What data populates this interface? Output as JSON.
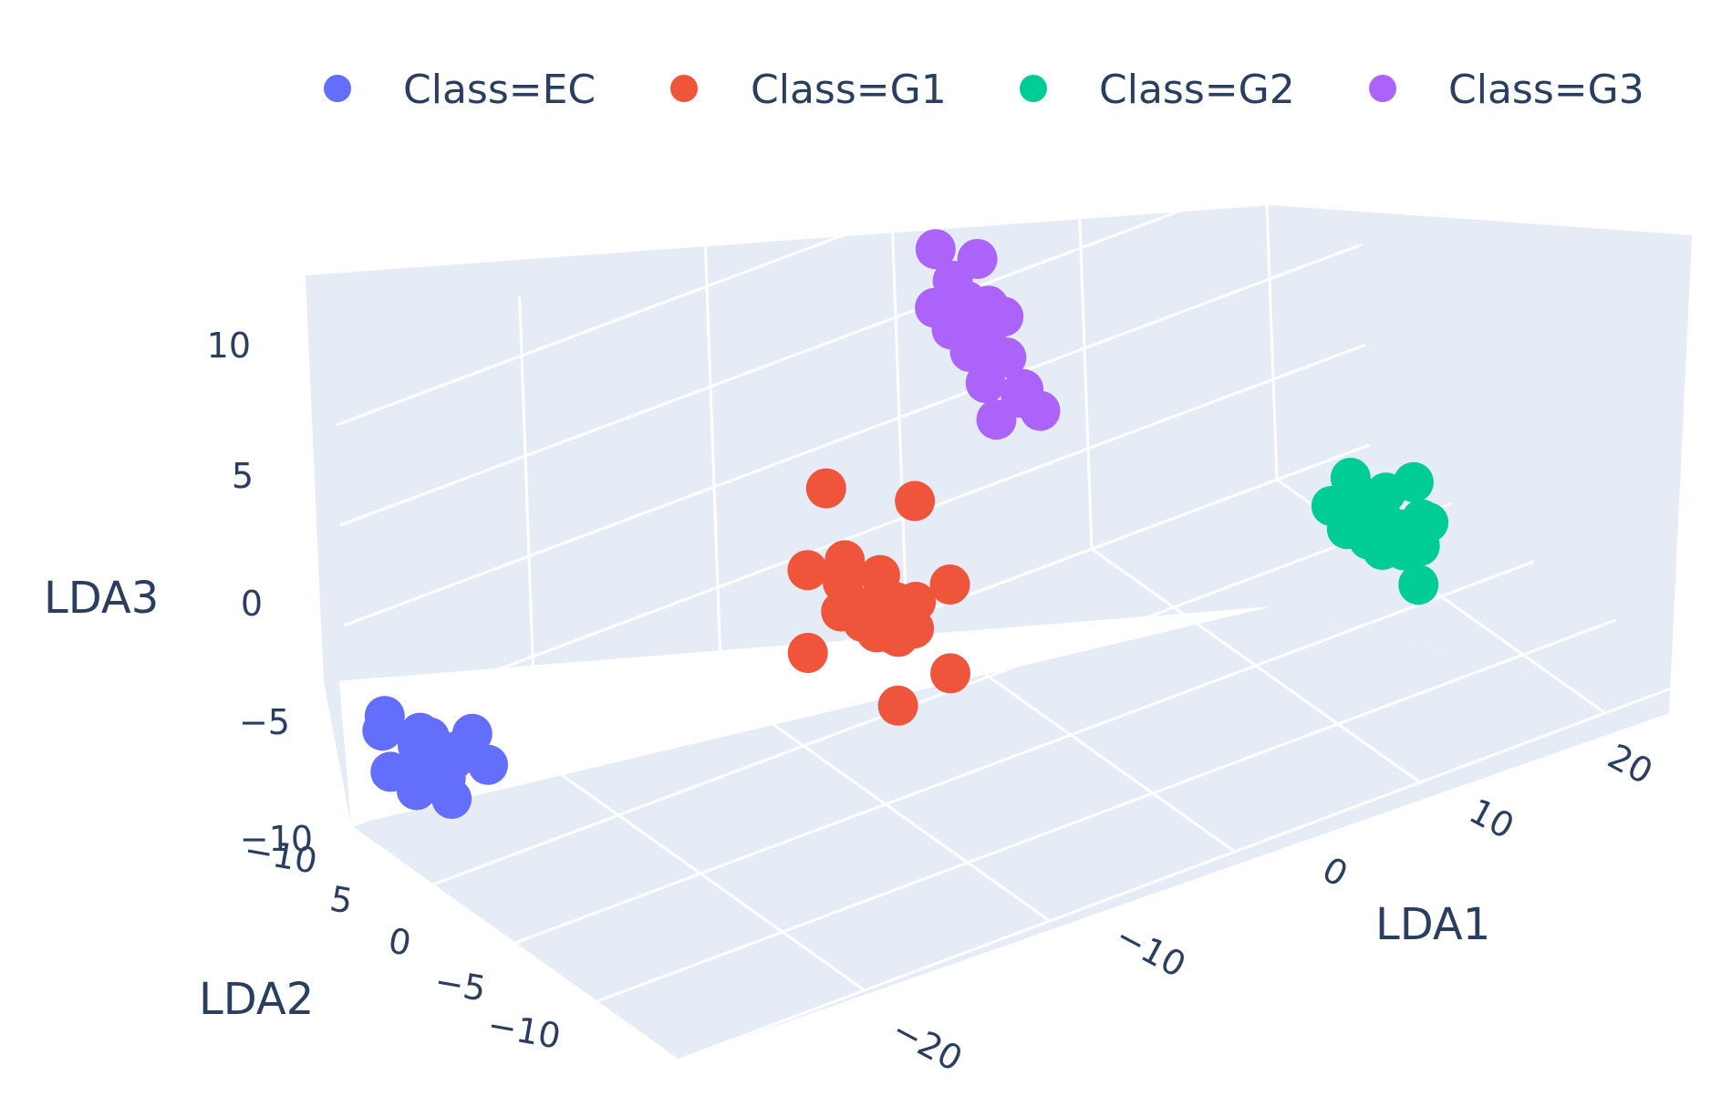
{
  "chart_data": {
    "type": "scatter3d",
    "legend": {
      "placement": "top",
      "entries": [
        "Class=EC",
        "Class=G1",
        "Class=G2",
        "Class=G3"
      ]
    },
    "axes": {
      "x": {
        "title": "LDA1",
        "ticks": [
          "−20",
          "−10",
          "0",
          "10",
          "20"
        ]
      },
      "y": {
        "title": "LDA2",
        "ticks": [
          "−10",
          "−5",
          "0",
          "5",
          "10"
        ],
        "tick_top": "−10"
      },
      "z": {
        "title": "LDA3",
        "ticks": [
          "−10",
          "−5",
          "0",
          "5",
          "10"
        ]
      }
    },
    "colors": {
      "EC": "#636efa",
      "G1": "#ef553b",
      "G2": "#00cc96",
      "G3": "#ab63fa",
      "pane": "#e5ecf6"
    },
    "series": [
      {
        "name": "Class=EC",
        "color": "#636efa",
        "points": [
          [
            -28,
            8,
            -5.5
          ],
          [
            -27,
            7,
            -6
          ],
          [
            -29,
            9,
            -5
          ],
          [
            -26,
            8,
            -6.5
          ],
          [
            -28,
            6,
            -7
          ],
          [
            -27,
            9,
            -5.8
          ],
          [
            -29,
            7,
            -6.8
          ],
          [
            -26,
            6,
            -6
          ],
          [
            -28,
            10,
            -5.2
          ],
          [
            -27.5,
            8.5,
            -7.5
          ],
          [
            -25.5,
            7.5,
            -5.5
          ],
          [
            -28.5,
            6.5,
            -5.8
          ],
          [
            -27,
            7.5,
            -7.2
          ],
          [
            -26.5,
            9,
            -6.2
          ],
          [
            -29.5,
            8,
            -6.3
          ]
        ]
      },
      {
        "name": "Class=G1",
        "color": "#ef553b",
        "points": [
          [
            -10,
            0,
            0
          ],
          [
            -9,
            1,
            0.5
          ],
          [
            -11,
            -1,
            -0.5
          ],
          [
            -10,
            2,
            1
          ],
          [
            -9,
            -1,
            -1
          ],
          [
            -11,
            1,
            0.8
          ],
          [
            -10.5,
            0.5,
            -0.3
          ],
          [
            -9.5,
            -0.5,
            0.2
          ],
          [
            -8,
            0,
            -0.6
          ],
          [
            -12,
            0,
            0.3
          ],
          [
            -10,
            3,
            4
          ],
          [
            -7,
            1,
            3.5
          ],
          [
            -13,
            1,
            -2
          ],
          [
            -8,
            -2,
            -3
          ],
          [
            -10,
            -1,
            -4.5
          ],
          [
            -7,
            -1,
            0.5
          ],
          [
            -12,
            2,
            1.2
          ],
          [
            -9,
            0,
            -2
          ],
          [
            -11,
            -2,
            0
          ],
          [
            -10,
            1,
            -1.5
          ]
        ]
      },
      {
        "name": "Class=G2",
        "color": "#00cc96",
        "points": [
          [
            12,
            -6,
            0
          ],
          [
            13,
            -5,
            0.5
          ],
          [
            11,
            -7,
            -0.5
          ],
          [
            12,
            -4,
            1
          ],
          [
            13,
            -7,
            -1
          ],
          [
            11,
            -5,
            0.8
          ],
          [
            12.5,
            -6.5,
            -0.3
          ],
          [
            11.5,
            -5.5,
            0.2
          ],
          [
            14,
            -6,
            -0.6
          ],
          [
            10,
            -6,
            0.3
          ],
          [
            12,
            -8,
            -2
          ],
          [
            13,
            -6,
            -1.8
          ],
          [
            11,
            -6,
            1.5
          ],
          [
            14.5,
            -5,
            0.5
          ],
          [
            12,
            -5,
            -1.5
          ],
          [
            13.5,
            -7,
            0
          ],
          [
            10.5,
            -4.5,
            0.4
          ]
        ]
      },
      {
        "name": "Class=G3",
        "color": "#ab63fa",
        "points": [
          [
            -2,
            2,
            9
          ],
          [
            -1,
            3,
            10
          ],
          [
            -3,
            1,
            8
          ],
          [
            -2,
            4,
            11
          ],
          [
            -1,
            1,
            7
          ],
          [
            -3,
            3,
            9.5
          ],
          [
            -2.5,
            2.5,
            8.5
          ],
          [
            -1.5,
            1.5,
            10.5
          ],
          [
            -2,
            5,
            12
          ],
          [
            -1,
            0,
            6.5
          ],
          [
            -3,
            2,
            11.5
          ],
          [
            -2,
            3,
            9
          ],
          [
            -1.5,
            3,
            12.5
          ],
          [
            -2.5,
            1,
            6
          ],
          [
            -1,
            2,
            8
          ],
          [
            -3,
            4,
            10
          ],
          [
            -2,
            0,
            7.5
          ]
        ]
      }
    ]
  }
}
